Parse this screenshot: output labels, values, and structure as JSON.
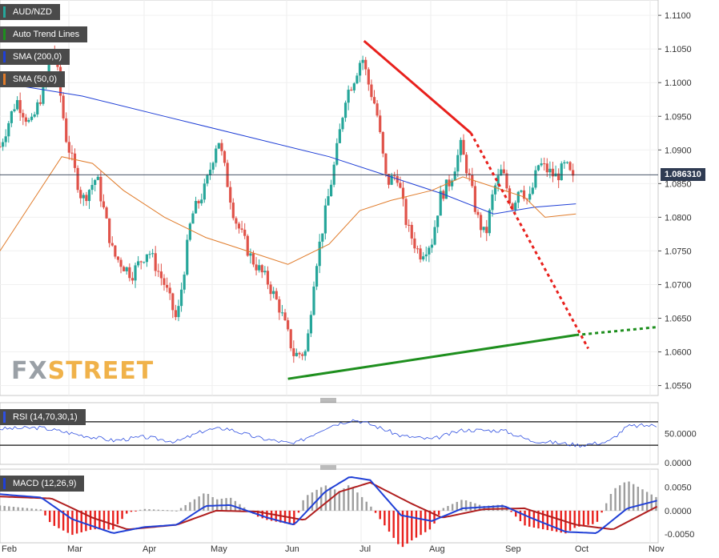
{
  "legend": {
    "main": [
      {
        "label": "AUD/NZD",
        "color": "#26a69a"
      },
      {
        "label": "Auto Trend Lines",
        "color": "#1e8f1e"
      },
      {
        "label": "SMA (200,0)",
        "color": "#1f3fd6"
      },
      {
        "label": "SMA (50,0)",
        "color": "#e07b2a"
      }
    ],
    "rsi": {
      "label": "RSI (14,70,30,1)",
      "color": "#2f4fe0"
    },
    "macd": {
      "label": "MACD (12,26,9)",
      "color": "#1f3fd6"
    }
  },
  "current_price": "1.086310",
  "logo": {
    "fx": "FX",
    "street": "STREET"
  },
  "colors": {
    "bull": "#26a69a",
    "bear": "#e0534a",
    "sma200": "#1f3fd6",
    "sma50": "#e07b2a",
    "trend_red": "#e8201c",
    "trend_green": "#1e8f1e",
    "rsi": "#2f4fe0",
    "macd": "#1f3fd6",
    "signal": "#b01e1e",
    "hist_pos": "#9e9e9e",
    "hist_neg": "#e8201c"
  },
  "chart_data": [
    {
      "type": "candlestick",
      "title": "AUD/NZD",
      "x_labels": [
        "Feb",
        "Mar",
        "Apr",
        "May",
        "Jun",
        "Jul",
        "Aug",
        "Sep",
        "Oct",
        "Nov"
      ],
      "y_ticks": [
        "1.1100",
        "1.1050",
        "1.1000",
        "1.0950",
        "1.0900",
        "1.0850",
        "1.0800",
        "1.0750",
        "1.0700",
        "1.0650",
        "1.0600",
        "1.0550"
      ],
      "ylim": [
        1.054,
        1.1118
      ],
      "x_range_days": [
        0,
        280
      ],
      "grid": true,
      "current_price": 1.08631,
      "key_points": [
        {
          "day": 0,
          "close": 1.0905
        },
        {
          "day": 8,
          "close": 1.0975
        },
        {
          "day": 15,
          "close": 1.0935
        },
        {
          "day": 22,
          "close": 1.1
        },
        {
          "day": 26,
          "close": 1.106
        },
        {
          "day": 32,
          "close": 1.092
        },
        {
          "day": 40,
          "close": 1.0825
        },
        {
          "day": 47,
          "close": 1.086
        },
        {
          "day": 55,
          "close": 1.0745
        },
        {
          "day": 64,
          "close": 1.0715
        },
        {
          "day": 72,
          "close": 1.0752
        },
        {
          "day": 80,
          "close": 1.07
        },
        {
          "day": 86,
          "close": 1.0645
        },
        {
          "day": 93,
          "close": 1.08
        },
        {
          "day": 100,
          "close": 1.0845
        },
        {
          "day": 106,
          "close": 1.092
        },
        {
          "day": 114,
          "close": 1.08
        },
        {
          "day": 122,
          "close": 1.074
        },
        {
          "day": 130,
          "close": 1.0705
        },
        {
          "day": 136,
          "close": 1.0665
        },
        {
          "day": 143,
          "close": 1.0595
        },
        {
          "day": 149,
          "close": 1.06
        },
        {
          "day": 153,
          "close": 1.072
        },
        {
          "day": 159,
          "close": 1.082
        },
        {
          "day": 163,
          "close": 1.0885
        },
        {
          "day": 168,
          "close": 1.098
        },
        {
          "day": 172,
          "close": 1.1005
        },
        {
          "day": 176,
          "close": 1.104
        },
        {
          "day": 179,
          "close": 1.1
        },
        {
          "day": 183,
          "close": 1.096
        },
        {
          "day": 188,
          "close": 1.085
        },
        {
          "day": 193,
          "close": 1.0865
        },
        {
          "day": 198,
          "close": 1.0785
        },
        {
          "day": 204,
          "close": 1.0745
        },
        {
          "day": 210,
          "close": 1.0765
        },
        {
          "day": 214,
          "close": 1.083
        },
        {
          "day": 219,
          "close": 1.0855
        },
        {
          "day": 224,
          "close": 1.0905
        },
        {
          "day": 228,
          "close": 1.086
        },
        {
          "day": 232,
          "close": 1.08
        },
        {
          "day": 236,
          "close": 1.077
        },
        {
          "day": 240,
          "close": 1.084
        },
        {
          "day": 244,
          "close": 1.087
        },
        {
          "day": 249,
          "close": 1.0815
        },
        {
          "day": 253,
          "close": 1.085
        },
        {
          "day": 257,
          "close": 1.082
        },
        {
          "day": 262,
          "close": 1.088
        },
        {
          "day": 266,
          "close": 1.087
        },
        {
          "day": 270,
          "close": 1.086
        },
        {
          "day": 272,
          "close": 1.0865
        },
        {
          "day": 275,
          "close": 1.0878
        },
        {
          "day": 280,
          "close": 1.0845
        }
      ],
      "sma200": [
        {
          "day": 0,
          "value": 1.1
        },
        {
          "day": 40,
          "value": 1.098
        },
        {
          "day": 80,
          "value": 1.095
        },
        {
          "day": 120,
          "value": 1.092
        },
        {
          "day": 160,
          "value": 1.089
        },
        {
          "day": 190,
          "value": 1.086
        },
        {
          "day": 215,
          "value": 1.0835
        },
        {
          "day": 240,
          "value": 1.0805
        },
        {
          "day": 260,
          "value": 1.0815
        },
        {
          "day": 280,
          "value": 1.082
        }
      ],
      "sma50": [
        {
          "day": 0,
          "value": 1.075
        },
        {
          "day": 15,
          "value": 1.082
        },
        {
          "day": 30,
          "value": 1.089
        },
        {
          "day": 45,
          "value": 1.088
        },
        {
          "day": 60,
          "value": 1.084
        },
        {
          "day": 80,
          "value": 1.08
        },
        {
          "day": 100,
          "value": 1.077
        },
        {
          "day": 120,
          "value": 1.075
        },
        {
          "day": 140,
          "value": 1.073
        },
        {
          "day": 160,
          "value": 1.076
        },
        {
          "day": 175,
          "value": 1.081
        },
        {
          "day": 190,
          "value": 1.0825
        },
        {
          "day": 210,
          "value": 1.084
        },
        {
          "day": 225,
          "value": 1.086
        },
        {
          "day": 240,
          "value": 1.0845
        },
        {
          "day": 255,
          "value": 1.083
        },
        {
          "day": 265,
          "value": 1.08
        },
        {
          "day": 280,
          "value": 1.0805
        }
      ],
      "trend_lines": [
        {
          "color": "red",
          "style": "solid",
          "points": [
            {
              "day": 177,
              "value": 1.1062
            },
            {
              "day": 229,
              "value": 1.0925
            }
          ]
        },
        {
          "color": "red",
          "style": "dotted",
          "points": [
            {
              "day": 229,
              "value": 1.0925
            },
            {
              "day": 286,
              "value": 1.0605
            }
          ]
        },
        {
          "color": "green",
          "style": "solid",
          "points": [
            {
              "day": 140,
              "value": 1.056
            },
            {
              "day": 280,
              "value": 1.0625
            }
          ]
        },
        {
          "color": "green",
          "style": "dotted",
          "points": [
            {
              "day": 280,
              "value": 1.0625
            },
            {
              "day": 320,
              "value": 1.0637
            }
          ]
        }
      ]
    },
    {
      "type": "line",
      "title": "RSI (14,70,30,1)",
      "y_ticks": [
        "50.0000",
        "0.0000"
      ],
      "ylim": [
        0,
        100
      ],
      "levels": [
        70,
        30
      ],
      "series": [
        {
          "values_by_day": [
            {
              "day": 0,
              "value": 58
            },
            {
              "day": 20,
              "value": 60
            },
            {
              "day": 40,
              "value": 47
            },
            {
              "day": 55,
              "value": 38
            },
            {
              "day": 70,
              "value": 44
            },
            {
              "day": 86,
              "value": 36
            },
            {
              "day": 100,
              "value": 56
            },
            {
              "day": 110,
              "value": 59
            },
            {
              "day": 125,
              "value": 43
            },
            {
              "day": 143,
              "value": 32
            },
            {
              "day": 160,
              "value": 63
            },
            {
              "day": 172,
              "value": 74
            },
            {
              "day": 180,
              "value": 66
            },
            {
              "day": 195,
              "value": 46
            },
            {
              "day": 210,
              "value": 40
            },
            {
              "day": 225,
              "value": 56
            },
            {
              "day": 245,
              "value": 55
            },
            {
              "day": 258,
              "value": 38
            },
            {
              "day": 268,
              "value": 35
            },
            {
              "day": 282,
              "value": 30
            },
            {
              "day": 296,
              "value": 36
            },
            {
              "day": 305,
              "value": 62
            },
            {
              "day": 315,
              "value": 64
            },
            {
              "day": 320,
              "value": 63
            }
          ]
        }
      ]
    },
    {
      "type": "line+bar",
      "title": "MACD (12,26,9)",
      "y_ticks": [
        "0.0050",
        "0.0000",
        "-0.0050"
      ],
      "ylim": [
        -0.0065,
        0.0085
      ],
      "series": [
        {
          "name": "MACD",
          "values_by_day": [
            {
              "day": 0,
              "value": 0.0035
            },
            {
              "day": 20,
              "value": 0.0028
            },
            {
              "day": 35,
              "value": -0.0018
            },
            {
              "day": 55,
              "value": -0.0048
            },
            {
              "day": 70,
              "value": -0.0035
            },
            {
              "day": 86,
              "value": -0.003
            },
            {
              "day": 100,
              "value": 0.001
            },
            {
              "day": 112,
              "value": 0.0012
            },
            {
              "day": 130,
              "value": -0.0015
            },
            {
              "day": 143,
              "value": -0.003
            },
            {
              "day": 158,
              "value": 0.004
            },
            {
              "day": 170,
              "value": 0.0072
            },
            {
              "day": 180,
              "value": 0.0065
            },
            {
              "day": 195,
              "value": -0.001
            },
            {
              "day": 210,
              "value": -0.0022
            },
            {
              "day": 225,
              "value": 0.0005
            },
            {
              "day": 245,
              "value": 0.001
            },
            {
              "day": 258,
              "value": -0.0015
            },
            {
              "day": 275,
              "value": -0.0045
            },
            {
              "day": 290,
              "value": -0.0048
            },
            {
              "day": 305,
              "value": 0.0005
            },
            {
              "day": 320,
              "value": 0.0022
            }
          ]
        },
        {
          "name": "Signal",
          "values_by_day": [
            {
              "day": 0,
              "value": 0.003
            },
            {
              "day": 25,
              "value": 0.0026
            },
            {
              "day": 45,
              "value": -0.0015
            },
            {
              "day": 62,
              "value": -0.004
            },
            {
              "day": 86,
              "value": -0.003
            },
            {
              "day": 105,
              "value": 0.0
            },
            {
              "day": 125,
              "value": -0.0002
            },
            {
              "day": 148,
              "value": -0.002
            },
            {
              "day": 165,
              "value": 0.004
            },
            {
              "day": 180,
              "value": 0.006
            },
            {
              "day": 200,
              "value": 0.0015
            },
            {
              "day": 215,
              "value": -0.0015
            },
            {
              "day": 235,
              "value": 0.0003
            },
            {
              "day": 255,
              "value": 0.0005
            },
            {
              "day": 280,
              "value": -0.003
            },
            {
              "day": 298,
              "value": -0.004
            },
            {
              "day": 320,
              "value": 0.001
            }
          ]
        }
      ]
    }
  ]
}
